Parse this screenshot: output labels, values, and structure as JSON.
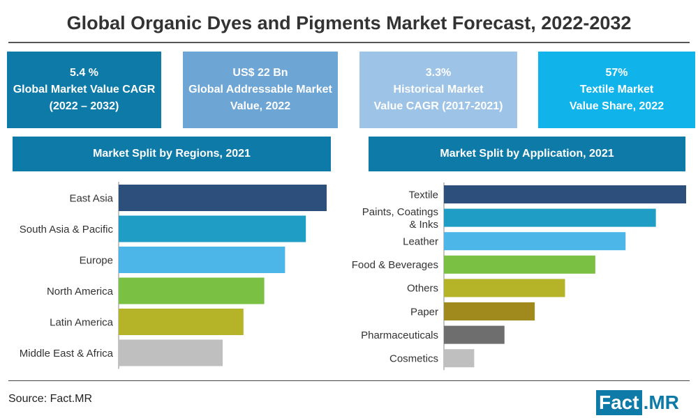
{
  "title": "Global Organic Dyes and Pigments Market Forecast, 2022-2032",
  "kpis": [
    {
      "line1": "5.4 %",
      "line2": "Global Market Value CAGR",
      "line3": "(2022 – 2032)",
      "color": "#0e7aa8"
    },
    {
      "line1": "US$ 22 Bn",
      "line2": "Global Addressable Market",
      "line3": "Value, 2022",
      "color": "#6da5d4"
    },
    {
      "line1": "3.3%",
      "line2": "Historical Market",
      "line3": "Value CAGR (2017-2021)",
      "color": "#9dc3e6"
    },
    {
      "line1": "57%",
      "line2": "Textile Market",
      "line3": "Value Share, 2022",
      "color": "#10b4ea"
    }
  ],
  "regions_banner": "Market Split by Regions, 2021",
  "application_banner": "Market Split by Application, 2021",
  "source": "Source: Fact.MR",
  "logo": {
    "part1": "Fact",
    "part2": ".MR"
  },
  "chart_data": [
    {
      "type": "bar",
      "orientation": "horizontal",
      "title": "Market Split by Regions, 2021",
      "categories": [
        "East Asia",
        "South Asia & Pacific",
        "Europe",
        "North America",
        "Latin America",
        "Middle East & Africa"
      ],
      "values": [
        6,
        5.4,
        4.8,
        4.2,
        3.6,
        3.0
      ],
      "value_scale": "relative (no axis or values printed)",
      "colors": [
        "#2c4f7c",
        "#1f9dc4",
        "#4cb6e9",
        "#7ac143",
        "#b5b428",
        "#bfbfbf"
      ]
    },
    {
      "type": "bar",
      "orientation": "horizontal",
      "title": "Market Split by Application, 2021",
      "categories": [
        "Textile",
        "Paints, Coatings & Inks",
        "Leather",
        "Food & Beverages",
        "Others",
        "Paper",
        "Pharmaceuticals",
        "Cosmetics"
      ],
      "values": [
        8,
        7,
        6,
        5,
        4,
        3,
        2,
        1
      ],
      "value_scale": "relative (no axis or values printed)",
      "colors": [
        "#2c4f7c",
        "#1f9dc4",
        "#4cb6e9",
        "#7ac143",
        "#b5b428",
        "#a08a1d",
        "#6e6e6e",
        "#bfbfbf"
      ]
    }
  ]
}
